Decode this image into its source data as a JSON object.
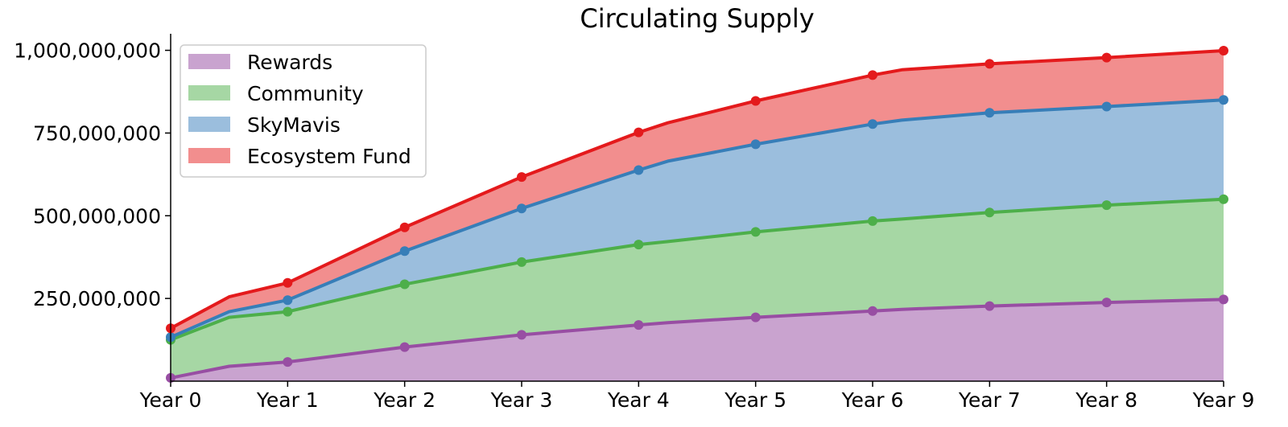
{
  "chart_data": {
    "type": "area",
    "stacked": true,
    "title": "Circulating Supply",
    "xlabel": "",
    "ylabel": "",
    "categories": [
      "Year 0",
      "Year 1",
      "Year 2",
      "Year 3",
      "Year 4",
      "Year 5",
      "Year 6",
      "Year 7",
      "Year 8",
      "Year 9"
    ],
    "ylim": [
      0,
      1050000000
    ],
    "yticks": [
      250000000,
      500000000,
      750000000,
      1000000000
    ],
    "ytick_labels": [
      "250,000,000",
      "500,000,000",
      "750,000,000",
      "1,000,000,000"
    ],
    "legend_position": "top-left",
    "series": [
      {
        "name": "Rewards",
        "fill": "#c9a3cf",
        "line": "#984ea3",
        "x": [
          0,
          0.5,
          1,
          2,
          3,
          4,
          4.25,
          5,
          6,
          6.25,
          7,
          8,
          9
        ],
        "values": [
          10000000,
          45000000,
          58000000,
          103000000,
          140000000,
          170000000,
          177000000,
          193000000,
          212000000,
          217000000,
          227000000,
          238000000,
          247000000
        ],
        "marker_x": [
          0,
          1,
          2,
          3,
          4,
          5,
          6,
          7,
          8,
          9
        ]
      },
      {
        "name": "Community",
        "fill": "#a6d7a4",
        "line": "#4daf4a",
        "x": [
          0,
          0.5,
          1,
          2,
          3,
          4,
          4.25,
          5,
          6,
          6.25,
          7,
          8,
          9
        ],
        "values": [
          115000000,
          148000000,
          152000000,
          190000000,
          220000000,
          243000000,
          245000000,
          258000000,
          272000000,
          273000000,
          283000000,
          294000000,
          303000000
        ],
        "marker_x": [
          0,
          1,
          2,
          3,
          4,
          5,
          6,
          7,
          8,
          9
        ]
      },
      {
        "name": "SkyMavis",
        "fill": "#9bbedd",
        "line": "#377eb8",
        "x": [
          0,
          0.5,
          1,
          2,
          3,
          4,
          4.25,
          5,
          6,
          6.25,
          7,
          8,
          9
        ],
        "values": [
          8000000,
          17000000,
          35000000,
          100000000,
          162000000,
          225000000,
          243000000,
          265000000,
          293000000,
          299000000,
          301000000,
          298000000,
          300000000
        ],
        "marker_x": [
          0,
          1,
          2,
          3,
          4,
          5,
          6,
          7,
          8,
          9
        ]
      },
      {
        "name": "Ecosystem Fund",
        "fill": "#f28e8e",
        "line": "#e41a1c",
        "x": [
          0,
          0.5,
          1,
          2,
          3,
          4,
          4.25,
          5,
          6,
          6.25,
          7,
          8,
          9
        ],
        "values": [
          27000000,
          45000000,
          52000000,
          72000000,
          95000000,
          114000000,
          116000000,
          131000000,
          148000000,
          152000000,
          148000000,
          148000000,
          149000000
        ],
        "marker_x": [
          0,
          1,
          2,
          3,
          4,
          5,
          6,
          7,
          8,
          9
        ]
      }
    ]
  }
}
